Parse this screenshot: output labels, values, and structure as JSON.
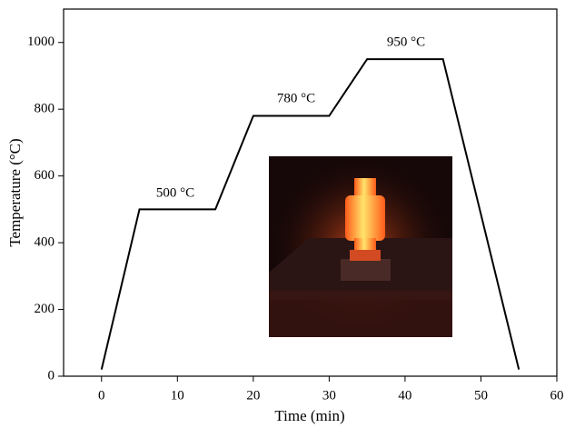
{
  "chart_data": {
    "type": "line",
    "xlabel": "Time (min)",
    "ylabel": "Temperature (°C)",
    "x": [
      0,
      5,
      15,
      20,
      30,
      35,
      45,
      55
    ],
    "series": [
      {
        "color": "#000000",
        "values": [
          20,
          500,
          500,
          780,
          780,
          950,
          950,
          20
        ]
      }
    ],
    "annotations": [
      "500 °C",
      "780 °C",
      "950 °C"
    ],
    "xlim": [
      -5,
      60
    ],
    "xticks": [
      0,
      10,
      20,
      30,
      40,
      50,
      60
    ],
    "ylim": [
      0,
      1100
    ],
    "yticks": [
      0,
      200,
      400,
      600,
      800,
      1000
    ],
    "grid": false
  }
}
